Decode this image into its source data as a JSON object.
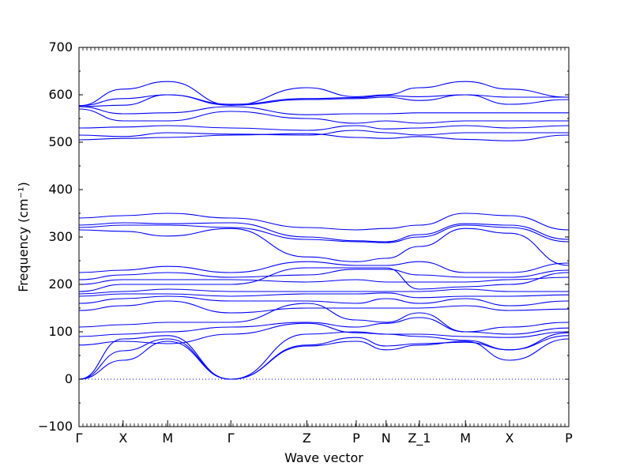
{
  "chart_data": {
    "type": "line",
    "xlabel": "Wave vector",
    "ylabel": "Frequency (cm⁻¹)",
    "ylim": [
      -100,
      700
    ],
    "yticks": [
      -100,
      0,
      100,
      200,
      300,
      400,
      500,
      600,
      700
    ],
    "xlim": [
      0,
      1
    ],
    "x_ticks": [
      {
        "label": "Γ",
        "x": 0.0
      },
      {
        "label": "X",
        "x": 0.09
      },
      {
        "label": "M",
        "x": 0.181
      },
      {
        "label": "Γ",
        "x": 0.31
      },
      {
        "label": "Z",
        "x": 0.465
      },
      {
        "label": "P",
        "x": 0.566
      },
      {
        "label": "N",
        "x": 0.627
      },
      {
        "label": "Z_1",
        "x": 0.695
      },
      {
        "label": "M",
        "x": 0.789
      },
      {
        "label": "X",
        "x": 0.879
      },
      {
        "label": "P",
        "x": 1.0
      }
    ],
    "grid": false,
    "line_color": "#0000ff",
    "zero_reference": {
      "y": 0,
      "style": "dotted"
    },
    "series": [
      {
        "y": [
          0,
          40,
          80,
          0,
          70,
          80,
          62,
          72,
          80,
          40,
          85
        ]
      },
      {
        "y": [
          0,
          60,
          85,
          0,
          72,
          88,
          70,
          75,
          78,
          62,
          92
        ]
      },
      {
        "y": [
          0,
          85,
          92,
          0,
          95,
          100,
          95,
          90,
          82,
          62,
          98
        ]
      },
      {
        "y": [
          72,
          80,
          75,
          95,
          118,
          98,
          95,
          95,
          90,
          88,
          100
        ]
      },
      {
        "y": [
          90,
          95,
          100,
          110,
          120,
          110,
          118,
          130,
          100,
          95,
          108
        ]
      },
      {
        "y": [
          110,
          115,
          120,
          120,
          160,
          125,
          120,
          140,
          100,
          110,
          120
        ]
      },
      {
        "y": [
          145,
          155,
          165,
          140,
          150,
          150,
          150,
          150,
          155,
          145,
          148
        ]
      },
      {
        "y": [
          160,
          170,
          175,
          165,
          165,
          160,
          170,
          160,
          170,
          155,
          165
        ]
      },
      {
        "y": [
          175,
          180,
          180,
          175,
          180,
          180,
          182,
          172,
          175,
          175,
          178
        ]
      },
      {
        "y": [
          180,
          185,
          190,
          185,
          185,
          185,
          185,
          185,
          190,
          185,
          185
        ]
      },
      {
        "y": [
          185,
          200,
          200,
          200,
          235,
          235,
          235,
          190,
          195,
          200,
          225
        ]
      },
      {
        "y": [
          200,
          210,
          210,
          210,
          205,
          210,
          205,
          205,
          205,
          210,
          215
        ]
      },
      {
        "y": [
          210,
          220,
          225,
          215,
          220,
          232,
          232,
          220,
          215,
          215,
          230
        ]
      },
      {
        "y": [
          225,
          230,
          238,
          225,
          248,
          240,
          240,
          248,
          225,
          225,
          245
        ]
      },
      {
        "y": [
          315,
          312,
          302,
          318,
          258,
          248,
          255,
          280,
          318,
          308,
          240
        ]
      },
      {
        "y": [
          320,
          325,
          325,
          320,
          295,
          290,
          288,
          300,
          325,
          320,
          290
        ]
      },
      {
        "y": [
          325,
          330,
          328,
          330,
          300,
          292,
          290,
          305,
          328,
          325,
          295
        ]
      },
      {
        "y": [
          340,
          345,
          350,
          340,
          320,
          315,
          318,
          325,
          350,
          345,
          315
        ]
      },
      {
        "y": [
          505,
          508,
          510,
          515,
          518,
          510,
          508,
          512,
          506,
          503,
          515
        ]
      },
      {
        "y": [
          515,
          512,
          520,
          517,
          515,
          525,
          520,
          515,
          520,
          520,
          520
        ]
      },
      {
        "y": [
          530,
          532,
          535,
          530,
          525,
          535,
          528,
          530,
          535,
          530,
          535
        ]
      },
      {
        "y": [
          570,
          545,
          545,
          565,
          550,
          540,
          545,
          540,
          545,
          545,
          545
        ]
      },
      {
        "y": [
          575,
          560,
          562,
          575,
          558,
          560,
          560,
          562,
          562,
          562,
          562
        ]
      },
      {
        "y": [
          575,
          578,
          600,
          578,
          590,
          592,
          595,
          588,
          600,
          580,
          590
        ]
      },
      {
        "y": [
          577,
          592,
          600,
          580,
          592,
          594,
          598,
          596,
          600,
          595,
          595
        ]
      },
      {
        "y": [
          577,
          612,
          628,
          578,
          615,
          596,
          600,
          615,
          628,
          612,
          595
        ]
      }
    ]
  }
}
